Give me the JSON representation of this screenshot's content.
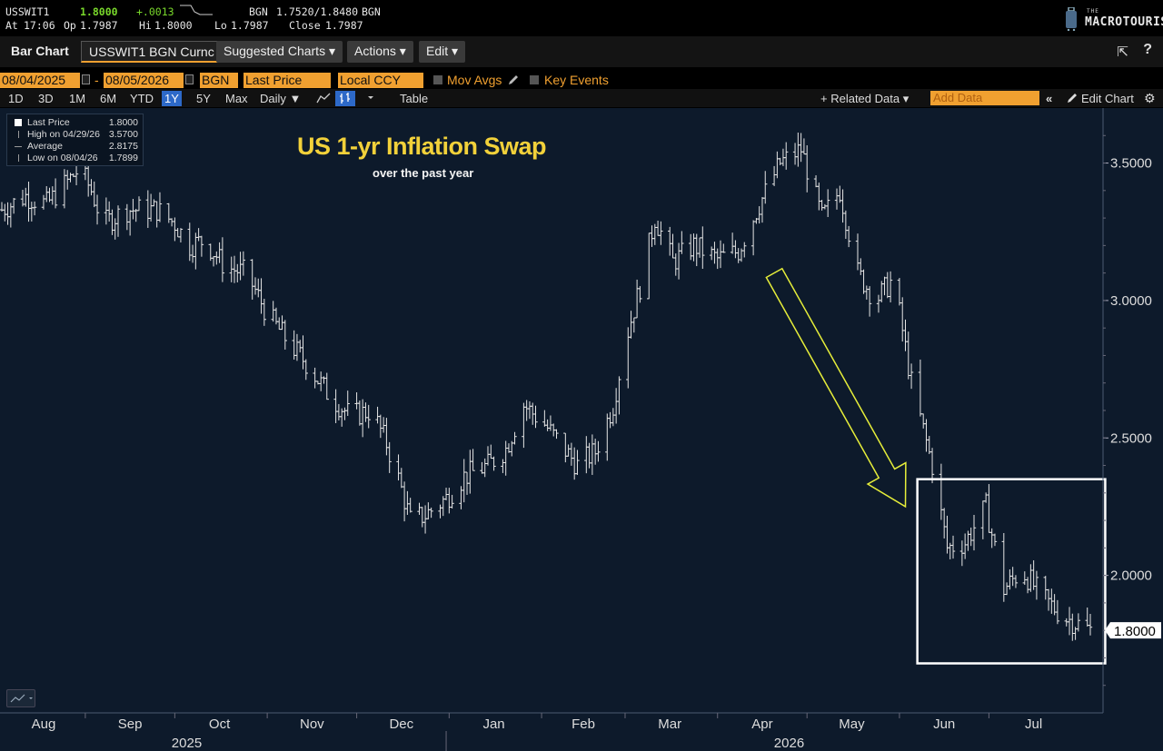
{
  "ticker": {
    "symbol": "USSWIT1",
    "last": "1.8000",
    "change": "+.0013",
    "bid_ask_label": "BGN",
    "bid_ask": "1.7520/1.8480",
    "bid_ask_src": "BGN",
    "at_label": "At",
    "time": "17:06",
    "op_label": "Op",
    "open": "1.7987",
    "hi_label": "Hi",
    "high": "1.8000",
    "lo_label": "Lo",
    "low": "1.7987",
    "close_label": "Close",
    "close": "1.7987"
  },
  "brand": {
    "the": "THE",
    "name": "MACROTOURIST"
  },
  "toolbar": {
    "bar_chart": "Bar Chart",
    "security": "USSWIT1 BGN Curnc",
    "suggested": "Suggested Charts ▾",
    "actions": "Actions ▾",
    "edit": "Edit ▾",
    "share_icon": "⇱",
    "help_icon": "?"
  },
  "datebar": {
    "start": "08/04/2025",
    "dash": "-",
    "end": "08/05/2026",
    "source": "BGN",
    "field": "Last Price",
    "currency": "Local CCY",
    "mov_avgs": "Mov Avgs",
    "key_events": "Key Events"
  },
  "periodbar": {
    "periods": [
      "1D",
      "3D",
      "1M",
      "6M",
      "YTD",
      "1Y",
      "5Y",
      "Max"
    ],
    "active": "1Y",
    "frequency": "Daily ▼",
    "table": "Table",
    "related": "+ Related Data ▾",
    "add_data_placeholder": "Add Data",
    "collapse": "«",
    "edit_chart": "Edit Chart",
    "gear": "⚙"
  },
  "legend": {
    "last_label": "Last Price",
    "last_value": "1.8000",
    "high_label": "High on 04/29/26",
    "high_value": "3.5700",
    "avg_label": "Average",
    "avg_value": "2.8175",
    "low_label": "Low on 08/04/26",
    "low_value": "1.7899"
  },
  "colors": {
    "background": "#0d1a2b",
    "bars": "#e6e6e6",
    "title": "#f2d13a",
    "arrow": "#e6ee3a",
    "box": "#ffffff",
    "accent": "#f0a030"
  },
  "chart_data": {
    "type": "ohlc-bar",
    "title": "US 1-yr Inflation Swap",
    "subtitle": "over the past year",
    "ylim": [
      1.5,
      3.7
    ],
    "yticks": [
      2.0,
      2.5,
      3.0,
      3.5
    ],
    "ytick_labels": [
      "2.0000",
      "2.5000",
      "3.0000",
      "3.5000"
    ],
    "last_value_label": "1.8000",
    "x_months": [
      "Aug",
      "Sep",
      "Oct",
      "Nov",
      "Dec",
      "Jan",
      "Feb",
      "Mar",
      "Apr",
      "May",
      "Jun",
      "Jul"
    ],
    "x_years": [
      "2025",
      "2026"
    ],
    "x_domain": [
      "2025-08-04",
      "2026-08-04"
    ],
    "series": [
      {
        "values": [
          {
            "date": "2025-08-04",
            "value": 3.33
          },
          {
            "date": "2025-08-12",
            "value": 3.38
          },
          {
            "date": "2025-08-19",
            "value": 3.35
          },
          {
            "date": "2025-08-25",
            "value": 3.42
          },
          {
            "date": "2025-08-30",
            "value": 3.48
          },
          {
            "date": "2025-09-03",
            "value": 3.4
          },
          {
            "date": "2025-09-07",
            "value": 3.28
          },
          {
            "date": "2025-09-15",
            "value": 3.33
          },
          {
            "date": "2025-09-25",
            "value": 3.33
          },
          {
            "date": "2025-10-01",
            "value": 3.28
          },
          {
            "date": "2025-10-06",
            "value": 3.2
          },
          {
            "date": "2025-10-11",
            "value": 3.22
          },
          {
            "date": "2025-10-18",
            "value": 3.12
          },
          {
            "date": "2025-10-25",
            "value": 3.1
          },
          {
            "date": "2025-11-01",
            "value": 2.95
          },
          {
            "date": "2025-11-08",
            "value": 2.85
          },
          {
            "date": "2025-11-15",
            "value": 2.76
          },
          {
            "date": "2025-11-22",
            "value": 2.65
          },
          {
            "date": "2025-11-29",
            "value": 2.58
          },
          {
            "date": "2025-12-06",
            "value": 2.6
          },
          {
            "date": "2025-12-11",
            "value": 2.48
          },
          {
            "date": "2025-12-15",
            "value": 2.35
          },
          {
            "date": "2025-12-19",
            "value": 2.2
          },
          {
            "date": "2025-12-24",
            "value": 2.22
          },
          {
            "date": "2025-12-31",
            "value": 2.28
          },
          {
            "date": "2026-01-06",
            "value": 2.36
          },
          {
            "date": "2026-01-14",
            "value": 2.4
          },
          {
            "date": "2026-01-20",
            "value": 2.46
          },
          {
            "date": "2026-01-26",
            "value": 2.62
          },
          {
            "date": "2026-02-02",
            "value": 2.55
          },
          {
            "date": "2026-02-07",
            "value": 2.48
          },
          {
            "date": "2026-02-13",
            "value": 2.4
          },
          {
            "date": "2026-02-19",
            "value": 2.45
          },
          {
            "date": "2026-02-25",
            "value": 2.62
          },
          {
            "date": "2026-03-01",
            "value": 2.85
          },
          {
            "date": "2026-03-06",
            "value": 3.05
          },
          {
            "date": "2026-03-11",
            "value": 3.3
          },
          {
            "date": "2026-03-17",
            "value": 3.14
          },
          {
            "date": "2026-03-24",
            "value": 3.2
          },
          {
            "date": "2026-04-01",
            "value": 3.15
          },
          {
            "date": "2026-04-08",
            "value": 3.18
          },
          {
            "date": "2026-04-15",
            "value": 3.35
          },
          {
            "date": "2026-04-22",
            "value": 3.5
          },
          {
            "date": "2026-04-29",
            "value": 3.55
          },
          {
            "date": "2026-05-06",
            "value": 3.3
          },
          {
            "date": "2026-05-12",
            "value": 3.4
          },
          {
            "date": "2026-05-18",
            "value": 3.1
          },
          {
            "date": "2026-05-24",
            "value": 3.0
          },
          {
            "date": "2026-05-30",
            "value": 3.08
          },
          {
            "date": "2026-06-05",
            "value": 2.7
          },
          {
            "date": "2026-06-12",
            "value": 2.4
          },
          {
            "date": "2026-06-17",
            "value": 2.1
          },
          {
            "date": "2026-06-23",
            "value": 2.12
          },
          {
            "date": "2026-06-30",
            "value": 2.25
          },
          {
            "date": "2026-07-06",
            "value": 1.95
          },
          {
            "date": "2026-07-12",
            "value": 2.02
          },
          {
            "date": "2026-07-19",
            "value": 1.92
          },
          {
            "date": "2026-07-26",
            "value": 1.85
          },
          {
            "date": "2026-08-04",
            "value": 1.8
          }
        ]
      }
    ]
  }
}
